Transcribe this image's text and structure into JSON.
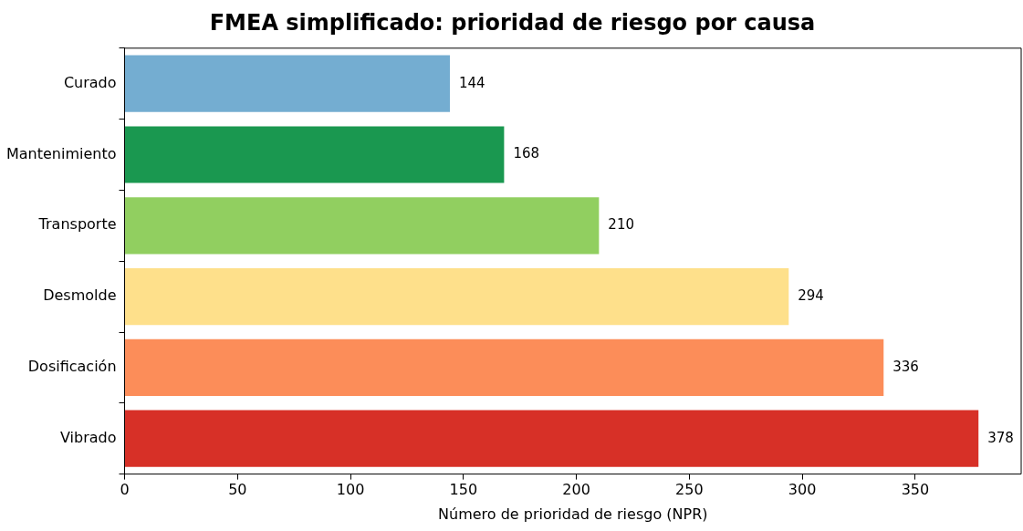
{
  "chart_data": {
    "type": "bar",
    "orientation": "horizontal",
    "title": "FMEA simplificado: prioridad de riesgo por causa",
    "xlabel": "Número de prioridad de riesgo (NPR)",
    "categories": [
      "Curado",
      "Mantenimiento",
      "Transporte",
      "Desmolde",
      "Dosificación",
      "Vibrado"
    ],
    "values": [
      144,
      168,
      210,
      294,
      336,
      378
    ],
    "colors": [
      "#74add1",
      "#1a9850",
      "#91cf60",
      "#fee08b",
      "#fc8d59",
      "#d73027"
    ],
    "xlim": [
      0,
      396.9
    ],
    "xticks": [
      0,
      50,
      100,
      150,
      200,
      250,
      300,
      350
    ],
    "data_labels": true,
    "grid": false,
    "legend": false
  }
}
